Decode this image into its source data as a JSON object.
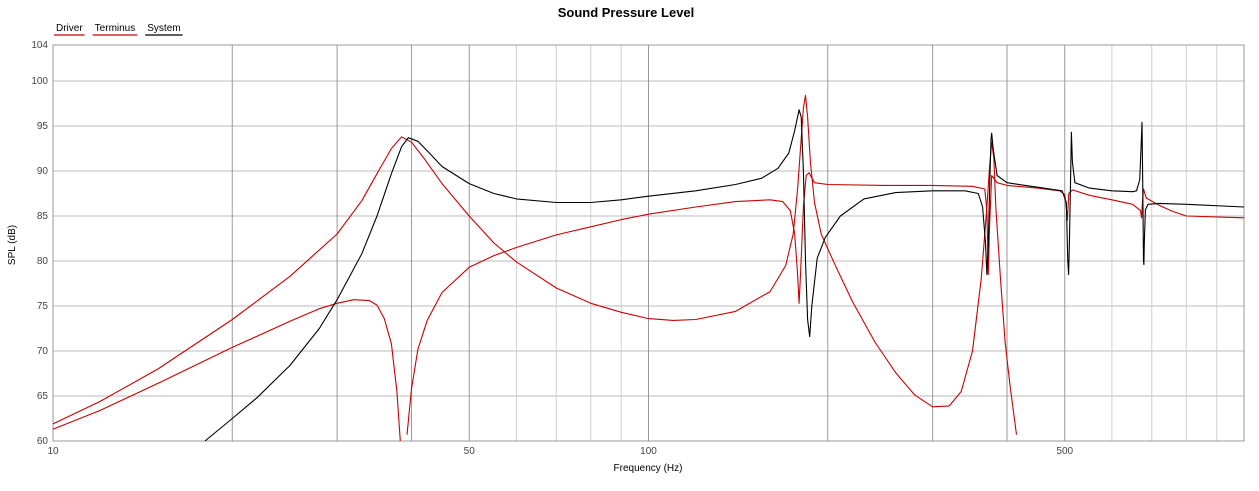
{
  "chart_data": {
    "type": "line",
    "title": "Sound Pressure Level",
    "xlabel": "Frequency (Hz)",
    "ylabel": "SPL (dB)",
    "x_scale": "log",
    "xlim": [
      10,
      1000
    ],
    "ylim": [
      60,
      104
    ],
    "x_ticks": [
      10,
      50,
      100,
      500
    ],
    "x_grid_major": [
      20,
      30,
      40,
      50,
      100,
      200,
      300,
      400,
      500,
      1000
    ],
    "x_grid_minor": [
      60,
      70,
      80,
      90,
      600,
      700,
      800,
      900
    ],
    "y_ticks": [
      60,
      65,
      70,
      75,
      80,
      85,
      90,
      95,
      100,
      104
    ],
    "grid": true,
    "legend_position": "top-left",
    "series": [
      {
        "name": "Driver",
        "color": "#cc0000",
        "points": [
          [
            10,
            61.9
          ],
          [
            12,
            64.4
          ],
          [
            15,
            68.0
          ],
          [
            20,
            73.5
          ],
          [
            25,
            78.3
          ],
          [
            30,
            83.0
          ],
          [
            33,
            86.7
          ],
          [
            35,
            89.7
          ],
          [
            37,
            92.5
          ],
          [
            38.5,
            93.8
          ],
          [
            40,
            93.2
          ],
          [
            42,
            91.4
          ],
          [
            45,
            88.6
          ],
          [
            50,
            85.0
          ],
          [
            55,
            82.0
          ],
          [
            60,
            79.9
          ],
          [
            70,
            77.0
          ],
          [
            80,
            75.3
          ],
          [
            90,
            74.3
          ],
          [
            100,
            73.6
          ],
          [
            110,
            73.4
          ],
          [
            120,
            73.5
          ],
          [
            140,
            74.4
          ],
          [
            160,
            76.6
          ],
          [
            170,
            79.5
          ],
          [
            175,
            83.0
          ],
          [
            178,
            88.0
          ],
          [
            180,
            92.5
          ],
          [
            182,
            97.0
          ],
          [
            183.5,
            98.4
          ],
          [
            185,
            96.0
          ],
          [
            187,
            91.0
          ],
          [
            190,
            86.5
          ],
          [
            195,
            83.0
          ],
          [
            205,
            79.8
          ],
          [
            220,
            75.5
          ],
          [
            240,
            71.0
          ],
          [
            260,
            67.6
          ],
          [
            280,
            65.1
          ],
          [
            300,
            63.8
          ],
          [
            320,
            63.9
          ],
          [
            335,
            65.5
          ],
          [
            350,
            70.0
          ],
          [
            362,
            78.0
          ],
          [
            370,
            86.0
          ],
          [
            374,
            90.5
          ],
          [
            377,
            93.2
          ],
          [
            380,
            91.5
          ],
          [
            383,
            86.0
          ],
          [
            390,
            78.0
          ],
          [
            397,
            71.0
          ],
          [
            405,
            66.0
          ],
          [
            415,
            60.7
          ]
        ]
      },
      {
        "name": "Terminus",
        "color": "#cc0000",
        "points": [
          [
            10,
            61.3
          ],
          [
            12,
            63.4
          ],
          [
            15,
            66.4
          ],
          [
            20,
            70.4
          ],
          [
            25,
            73.3
          ],
          [
            28,
            74.7
          ],
          [
            30,
            75.3
          ],
          [
            32,
            75.7
          ],
          [
            34,
            75.6
          ],
          [
            35,
            75.1
          ],
          [
            36,
            73.6
          ],
          [
            37,
            70.8
          ],
          [
            37.8,
            65.5
          ],
          [
            38.3,
            60.0
          ],
          [
            null,
            null
          ],
          [
            39.3,
            60.7
          ],
          [
            40,
            65.8
          ],
          [
            41,
            70.2
          ],
          [
            42.5,
            73.4
          ],
          [
            45,
            76.5
          ],
          [
            50,
            79.3
          ],
          [
            55,
            80.6
          ],
          [
            60,
            81.5
          ],
          [
            70,
            82.9
          ],
          [
            80,
            83.8
          ],
          [
            90,
            84.6
          ],
          [
            100,
            85.2
          ],
          [
            120,
            86.0
          ],
          [
            140,
            86.6
          ],
          [
            160,
            86.8
          ],
          [
            168,
            86.6
          ],
          [
            173,
            85.6
          ],
          [
            176,
            83.0
          ],
          [
            178,
            78.5
          ],
          [
            179,
            75.3
          ],
          [
            180,
            78.5
          ],
          [
            182,
            86.0
          ],
          [
            184,
            89.5
          ],
          [
            186,
            89.8
          ],
          [
            190,
            88.7
          ],
          [
            200,
            88.5
          ],
          [
            250,
            88.4
          ],
          [
            300,
            88.4
          ],
          [
            350,
            88.3
          ],
          [
            367,
            88.0
          ],
          [
            370,
            85.5
          ],
          [
            372,
            78.5
          ],
          [
            374,
            84.0
          ],
          [
            377,
            89.5
          ],
          [
            385,
            88.7
          ],
          [
            400,
            88.4
          ],
          [
            450,
            88.1
          ],
          [
            490,
            87.8
          ],
          [
            500,
            87.4
          ],
          [
            503,
            86.0
          ],
          [
            505,
            84.5
          ],
          [
            508,
            87.5
          ],
          [
            515,
            87.9
          ],
          [
            550,
            87.3
          ],
          [
            600,
            86.8
          ],
          [
            650,
            86.3
          ],
          [
            670,
            85.6
          ],
          [
            673,
            84.8
          ],
          [
            675,
            86.5
          ],
          [
            678,
            88.0
          ],
          [
            685,
            87.0
          ],
          [
            720,
            86.2
          ],
          [
            760,
            85.5
          ],
          [
            800,
            85.0
          ],
          [
            1000,
            84.8
          ]
        ]
      },
      {
        "name": "System",
        "color": "#000000",
        "points": [
          [
            18,
            60.0
          ],
          [
            20,
            62.5
          ],
          [
            22,
            64.8
          ],
          [
            25,
            68.4
          ],
          [
            28,
            72.5
          ],
          [
            30,
            75.7
          ],
          [
            33,
            80.8
          ],
          [
            35,
            85.0
          ],
          [
            37,
            89.7
          ],
          [
            38.5,
            92.7
          ],
          [
            39.5,
            93.7
          ],
          [
            41,
            93.3
          ],
          [
            43,
            91.9
          ],
          [
            45,
            90.5
          ],
          [
            50,
            88.6
          ],
          [
            55,
            87.5
          ],
          [
            60,
            86.9
          ],
          [
            70,
            86.5
          ],
          [
            80,
            86.5
          ],
          [
            90,
            86.8
          ],
          [
            100,
            87.2
          ],
          [
            120,
            87.8
          ],
          [
            140,
            88.5
          ],
          [
            155,
            89.2
          ],
          [
            165,
            90.3
          ],
          [
            172,
            92.0
          ],
          [
            176,
            94.5
          ],
          [
            179,
            96.8
          ],
          [
            180.5,
            96.0
          ],
          [
            182,
            90.0
          ],
          [
            183.5,
            80.0
          ],
          [
            185,
            73.5
          ],
          [
            186.5,
            71.6
          ],
          [
            188,
            75.0
          ],
          [
            192,
            80.3
          ],
          [
            198,
            82.6
          ],
          [
            210,
            85.0
          ],
          [
            230,
            86.9
          ],
          [
            260,
            87.6
          ],
          [
            300,
            87.8
          ],
          [
            340,
            87.8
          ],
          [
            358,
            87.5
          ],
          [
            364,
            86.0
          ],
          [
            368,
            82.0
          ],
          [
            370,
            78.5
          ],
          [
            372,
            82.0
          ],
          [
            374,
            88.0
          ],
          [
            376,
            93.5
          ],
          [
            377,
            94.2
          ],
          [
            379,
            92.5
          ],
          [
            385,
            89.5
          ],
          [
            400,
            88.7
          ],
          [
            450,
            88.2
          ],
          [
            495,
            87.8
          ],
          [
            503,
            86.5
          ],
          [
            506,
            80.0
          ],
          [
            507.5,
            78.5
          ],
          [
            509,
            82.0
          ],
          [
            511,
            88.0
          ],
          [
            513,
            94.3
          ],
          [
            515,
            91.0
          ],
          [
            520,
            88.7
          ],
          [
            550,
            88.1
          ],
          [
            600,
            87.8
          ],
          [
            650,
            87.7
          ],
          [
            660,
            87.8
          ],
          [
            668,
            89.0
          ],
          [
            672,
            93.0
          ],
          [
            674,
            95.4
          ],
          [
            676,
            89.0
          ],
          [
            678,
            80.0
          ],
          [
            679,
            79.6
          ],
          [
            680,
            82.0
          ],
          [
            683,
            85.7
          ],
          [
            690,
            86.3
          ],
          [
            720,
            86.4
          ],
          [
            800,
            86.3
          ],
          [
            1000,
            86.0
          ]
        ]
      }
    ]
  }
}
